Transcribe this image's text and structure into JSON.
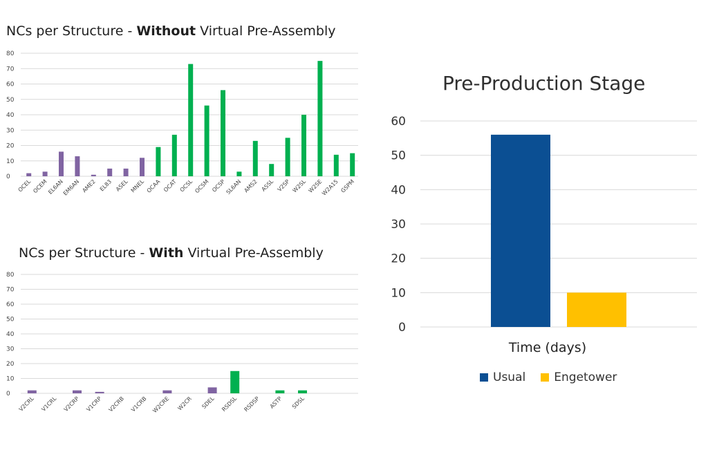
{
  "colors": {
    "purple": "#8064a2",
    "green": "#00b050",
    "usual": "#0b4f93",
    "engetower": "#ffc000",
    "grid": "#d9d9d9"
  },
  "chart_data": [
    {
      "type": "bar",
      "title_prefix": "NCs per Structure - ",
      "title_bold": "Without",
      "title_suffix": " Virtual Pre-Assembly",
      "ylim": [
        0,
        80
      ],
      "yticks": [
        0,
        10,
        20,
        30,
        40,
        50,
        60,
        70,
        80
      ],
      "grid": true,
      "categories": [
        "OCEL",
        "OCEM",
        "EL6AN",
        "EM6AN",
        "AME2",
        "EL83",
        "ASEL",
        "MNEL",
        "OCAA",
        "OCAT",
        "OCSL",
        "OCSM",
        "OCSP",
        "SL6AN",
        "AMS2",
        "ASSL",
        "V2SP",
        "W2SL",
        "W2SE",
        "W2A15",
        "GSPM"
      ],
      "values": [
        2,
        3,
        16,
        13,
        1,
        5,
        5,
        12,
        19,
        27,
        73,
        46,
        56,
        3,
        23,
        8,
        25,
        40,
        75,
        14,
        15
      ],
      "bar_colors": [
        "purple",
        "purple",
        "purple",
        "purple",
        "purple",
        "purple",
        "purple",
        "purple",
        "green",
        "green",
        "green",
        "green",
        "green",
        "green",
        "green",
        "green",
        "green",
        "green",
        "green",
        "green",
        "green"
      ]
    },
    {
      "type": "bar",
      "title_prefix": "NCs per Structure - ",
      "title_bold": "With",
      "title_suffix": " Virtual Pre-Assembly",
      "ylim": [
        0,
        80
      ],
      "yticks": [
        0,
        10,
        20,
        30,
        40,
        50,
        60,
        70,
        80
      ],
      "grid": true,
      "categories": [
        "V2CRL",
        "V1CRL",
        "V2CRP",
        "V1CRP",
        "V2CRB",
        "V1CRB",
        "W2CRE",
        "W2CR",
        "SDEL",
        "RSDSL",
        "RSDSP",
        "ASTP",
        "SDSL"
      ],
      "values": [
        2,
        0,
        2,
        1,
        0,
        0,
        2,
        0,
        4,
        15,
        0,
        2,
        2
      ],
      "bar_colors": [
        "purple",
        "purple",
        "purple",
        "purple",
        "purple",
        "purple",
        "purple",
        "purple",
        "purple",
        "green",
        "green",
        "green",
        "green"
      ]
    },
    {
      "type": "bar",
      "title": "Pre-Production Stage",
      "xlabel": "Time (days)",
      "ylim": [
        0,
        60
      ],
      "yticks": [
        0,
        10,
        20,
        30,
        40,
        50,
        60
      ],
      "grid": true,
      "legend_position": "bottom",
      "categories": [
        "Time (days)"
      ],
      "series": [
        {
          "name": "Usual",
          "values": [
            56
          ],
          "color": "usual"
        },
        {
          "name": "Engetower",
          "values": [
            10
          ],
          "color": "engetower"
        }
      ]
    }
  ]
}
